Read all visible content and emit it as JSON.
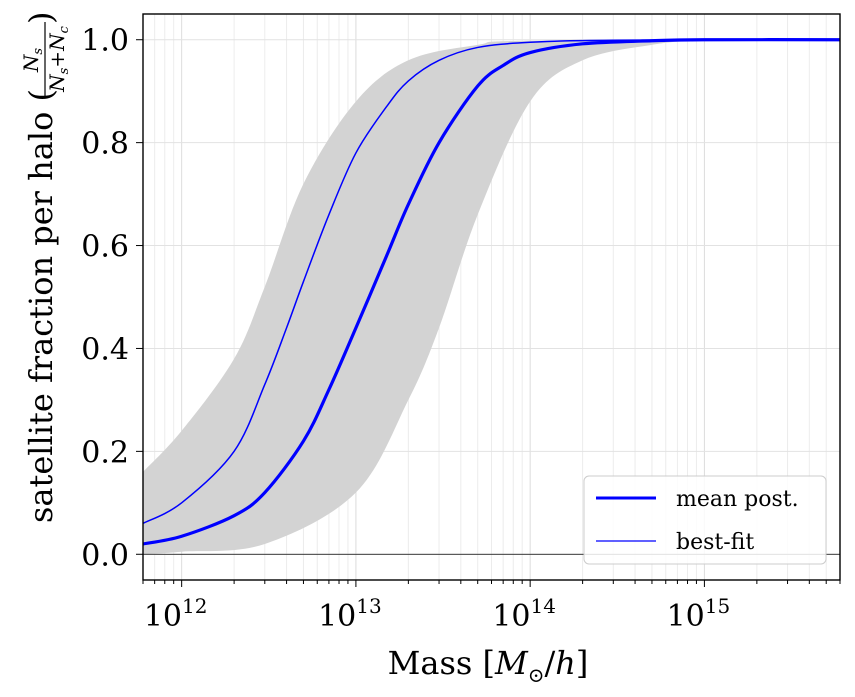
{
  "chart_data": {
    "type": "line",
    "xlabel": "Mass [M⊙/h]",
    "ylabel": "satellite fraction per halo (Ns/(Ns+Nc))",
    "ylabel_parts": {
      "text": "satellite fraction per halo (",
      "num": "N",
      "num_sub": "s",
      "den": "N",
      "den_sub1": "s",
      "plus": "+",
      "den2": "N",
      "den_sub2": "c",
      "close": ")"
    },
    "xlabel_parts": {
      "text": "Mass [",
      "m": "M",
      "sun": "⊙",
      "slash": "/",
      "h": "h",
      "close": "]"
    },
    "xscale": "log",
    "xlim": [
      600000000000.0,
      6000000000000000.0
    ],
    "ylim": [
      -0.05,
      1.05
    ],
    "x_ticks": [
      {
        "base": "10",
        "exp": "12",
        "value": 1000000000000.0
      },
      {
        "base": "10",
        "exp": "13",
        "value": 10000000000000.0
      },
      {
        "base": "10",
        "exp": "14",
        "value": 100000000000000.0
      },
      {
        "base": "10",
        "exp": "15",
        "value": 1000000000000000.0
      }
    ],
    "y_ticks": [
      "0.0",
      "0.2",
      "0.4",
      "0.6",
      "0.8",
      "1.0"
    ],
    "grid": true,
    "legend_position": "lower-right",
    "hline_y": 0.0,
    "band": {
      "color": "#d3d3d3",
      "lower": [
        [
          600000000000.0,
          0.0
        ],
        [
          1000000000000.0,
          0.005
        ],
        [
          3000000000000.0,
          0.02
        ],
        [
          10000000000000.0,
          0.12
        ],
        [
          20000000000000.0,
          0.3
        ],
        [
          30000000000000.0,
          0.44
        ],
        [
          50000000000000.0,
          0.66
        ],
        [
          100000000000000.0,
          0.88
        ],
        [
          200000000000000.0,
          0.96
        ],
        [
          500000000000000.0,
          0.99
        ],
        [
          1000000000000000.0,
          0.998
        ],
        [
          6000000000000000.0,
          1.0
        ]
      ],
      "upper": [
        [
          600000000000.0,
          0.16
        ],
        [
          1000000000000.0,
          0.24
        ],
        [
          2000000000000.0,
          0.38
        ],
        [
          3000000000000.0,
          0.52
        ],
        [
          5000000000000.0,
          0.72
        ],
        [
          10000000000000.0,
          0.88
        ],
        [
          20000000000000.0,
          0.96
        ],
        [
          50000000000000.0,
          0.99
        ],
        [
          100000000000000.0,
          0.998
        ],
        [
          6000000000000000.0,
          1.0
        ]
      ]
    },
    "series": [
      {
        "name": "mean post.",
        "color": "#0000ff",
        "width": "thick",
        "points": [
          [
            600000000000.0,
            0.02
          ],
          [
            1000000000000.0,
            0.035
          ],
          [
            2000000000000.0,
            0.075
          ],
          [
            3000000000000.0,
            0.12
          ],
          [
            5000000000000.0,
            0.22
          ],
          [
            7000000000000.0,
            0.32
          ],
          [
            10000000000000.0,
            0.44
          ],
          [
            15000000000000.0,
            0.58
          ],
          [
            20000000000000.0,
            0.68
          ],
          [
            30000000000000.0,
            0.8
          ],
          [
            50000000000000.0,
            0.91
          ],
          [
            70000000000000.0,
            0.95
          ],
          [
            100000000000000.0,
            0.975
          ],
          [
            200000000000000.0,
            0.992
          ],
          [
            500000000000000.0,
            0.998
          ],
          [
            1000000000000000.0,
            1.0
          ],
          [
            6000000000000000.0,
            1.0
          ]
        ]
      },
      {
        "name": "best-fit",
        "color": "#0000ff",
        "width": "thin",
        "points": [
          [
            600000000000.0,
            0.06
          ],
          [
            1000000000000.0,
            0.1
          ],
          [
            2000000000000.0,
            0.2
          ],
          [
            3000000000000.0,
            0.33
          ],
          [
            4000000000000.0,
            0.44
          ],
          [
            5000000000000.0,
            0.53
          ],
          [
            7000000000000.0,
            0.66
          ],
          [
            10000000000000.0,
            0.78
          ],
          [
            15000000000000.0,
            0.87
          ],
          [
            20000000000000.0,
            0.92
          ],
          [
            30000000000000.0,
            0.96
          ],
          [
            50000000000000.0,
            0.985
          ],
          [
            100000000000000.0,
            0.995
          ],
          [
            300000000000000.0,
            0.999
          ],
          [
            6000000000000000.0,
            1.0
          ]
        ]
      }
    ]
  }
}
